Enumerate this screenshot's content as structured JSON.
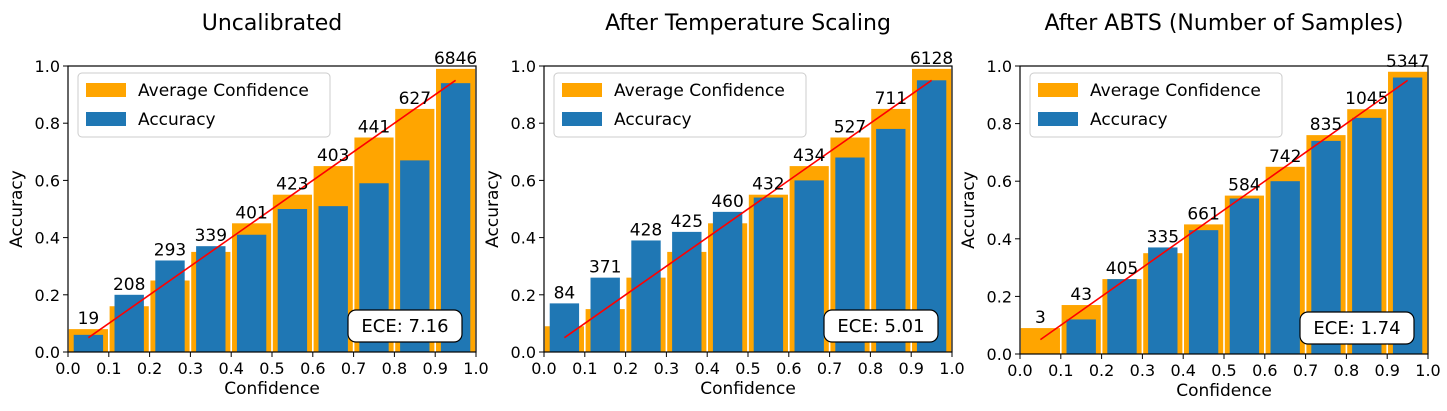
{
  "chart_data": [
    {
      "type": "bar",
      "title": "Uncalibrated",
      "xlabel": "Confidence",
      "ylabel": "Accuracy",
      "xlim": [
        0.0,
        1.0
      ],
      "ylim": [
        0.0,
        1.0
      ],
      "xticks": [
        "0.0",
        "0.1",
        "0.2",
        "0.3",
        "0.4",
        "0.5",
        "0.6",
        "0.7",
        "0.8",
        "0.9",
        "1.0"
      ],
      "yticks": [
        "0.0",
        "0.2",
        "0.4",
        "0.6",
        "0.8",
        "1.0"
      ],
      "legend": [
        "Average Confidence",
        "Accuracy"
      ],
      "legend_position": "top-left",
      "bin_centers": [
        0.05,
        0.15,
        0.25,
        0.35,
        0.45,
        0.55,
        0.65,
        0.75,
        0.85,
        0.95
      ],
      "series": [
        {
          "name": "Average Confidence",
          "values": [
            0.08,
            0.16,
            0.25,
            0.35,
            0.45,
            0.55,
            0.65,
            0.75,
            0.85,
            0.99
          ]
        },
        {
          "name": "Accuracy",
          "values": [
            0.06,
            0.2,
            0.32,
            0.37,
            0.41,
            0.5,
            0.51,
            0.59,
            0.67,
            0.94
          ]
        }
      ],
      "counts": [
        "19",
        "208",
        "293",
        "339",
        "401",
        "423",
        "403",
        "441",
        "627",
        "6846"
      ],
      "count_y": [
        0.08,
        0.2,
        0.32,
        0.37,
        0.45,
        0.55,
        0.65,
        0.75,
        0.85,
        0.99
      ],
      "ece": "ECE: 7.16",
      "diagonal": [
        [
          0.05,
          0.05
        ],
        [
          0.95,
          0.95
        ]
      ]
    },
    {
      "type": "bar",
      "title": "After Temperature Scaling",
      "xlabel": "Confidence",
      "ylabel": "Accuracy",
      "xlim": [
        0.0,
        1.0
      ],
      "ylim": [
        0.0,
        1.0
      ],
      "xticks": [
        "0.0",
        "0.1",
        "0.2",
        "0.3",
        "0.4",
        "0.5",
        "0.6",
        "0.7",
        "0.8",
        "0.9",
        "1.0"
      ],
      "yticks": [
        "0.0",
        "0.2",
        "0.4",
        "0.6",
        "0.8",
        "1.0"
      ],
      "legend": [
        "Average Confidence",
        "Accuracy"
      ],
      "legend_position": "top-left",
      "bin_centers": [
        0.05,
        0.15,
        0.25,
        0.35,
        0.45,
        0.55,
        0.65,
        0.75,
        0.85,
        0.95
      ],
      "series": [
        {
          "name": "Average Confidence",
          "values": [
            0.09,
            0.15,
            0.26,
            0.35,
            0.45,
            0.55,
            0.65,
            0.75,
            0.85,
            0.99
          ]
        },
        {
          "name": "Accuracy",
          "values": [
            0.17,
            0.26,
            0.39,
            0.42,
            0.49,
            0.54,
            0.6,
            0.68,
            0.78,
            0.95
          ]
        }
      ],
      "counts": [
        "84",
        "371",
        "428",
        "425",
        "460",
        "432",
        "434",
        "527",
        "711",
        "6128"
      ],
      "count_y": [
        0.17,
        0.26,
        0.39,
        0.42,
        0.49,
        0.55,
        0.65,
        0.75,
        0.85,
        0.99
      ],
      "ece": "ECE: 5.01",
      "diagonal": [
        [
          0.05,
          0.05
        ],
        [
          0.95,
          0.95
        ]
      ]
    },
    {
      "type": "bar",
      "title": "After ABTS (Number of Samples)",
      "xlabel": "Confidence",
      "ylabel": "Accuracy",
      "xlim": [
        0.0,
        1.0
      ],
      "ylim": [
        0.0,
        1.0
      ],
      "xticks": [
        "0.0",
        "0.1",
        "0.2",
        "0.3",
        "0.4",
        "0.5",
        "0.6",
        "0.7",
        "0.8",
        "0.9",
        "1.0"
      ],
      "yticks": [
        "0.0",
        "0.2",
        "0.4",
        "0.6",
        "0.8",
        "1.0"
      ],
      "legend": [
        "Average Confidence",
        "Accuracy"
      ],
      "legend_position": "top-left",
      "bin_centers": [
        0.05,
        0.15,
        0.25,
        0.35,
        0.45,
        0.55,
        0.65,
        0.75,
        0.85,
        0.95
      ],
      "series": [
        {
          "name": "Average Confidence",
          "values": [
            0.09,
            0.17,
            0.26,
            0.35,
            0.45,
            0.55,
            0.65,
            0.76,
            0.85,
            0.98
          ]
        },
        {
          "name": "Accuracy",
          "values": [
            0.0,
            0.12,
            0.26,
            0.37,
            0.43,
            0.54,
            0.6,
            0.74,
            0.82,
            0.96
          ]
        }
      ],
      "counts": [
        "3",
        "43",
        "405",
        "335",
        "661",
        "584",
        "742",
        "835",
        "1045",
        "5347"
      ],
      "count_y": [
        0.09,
        0.17,
        0.26,
        0.37,
        0.45,
        0.55,
        0.65,
        0.76,
        0.85,
        0.98
      ],
      "ece": "ECE: 1.74",
      "diagonal": [
        [
          0.05,
          0.05
        ],
        [
          0.95,
          0.95
        ]
      ]
    }
  ],
  "colors": {
    "confidence": "#FFA500",
    "accuracy": "#1F77B4",
    "diagonal": "#FF0000",
    "legend_border": "#cccccc"
  }
}
